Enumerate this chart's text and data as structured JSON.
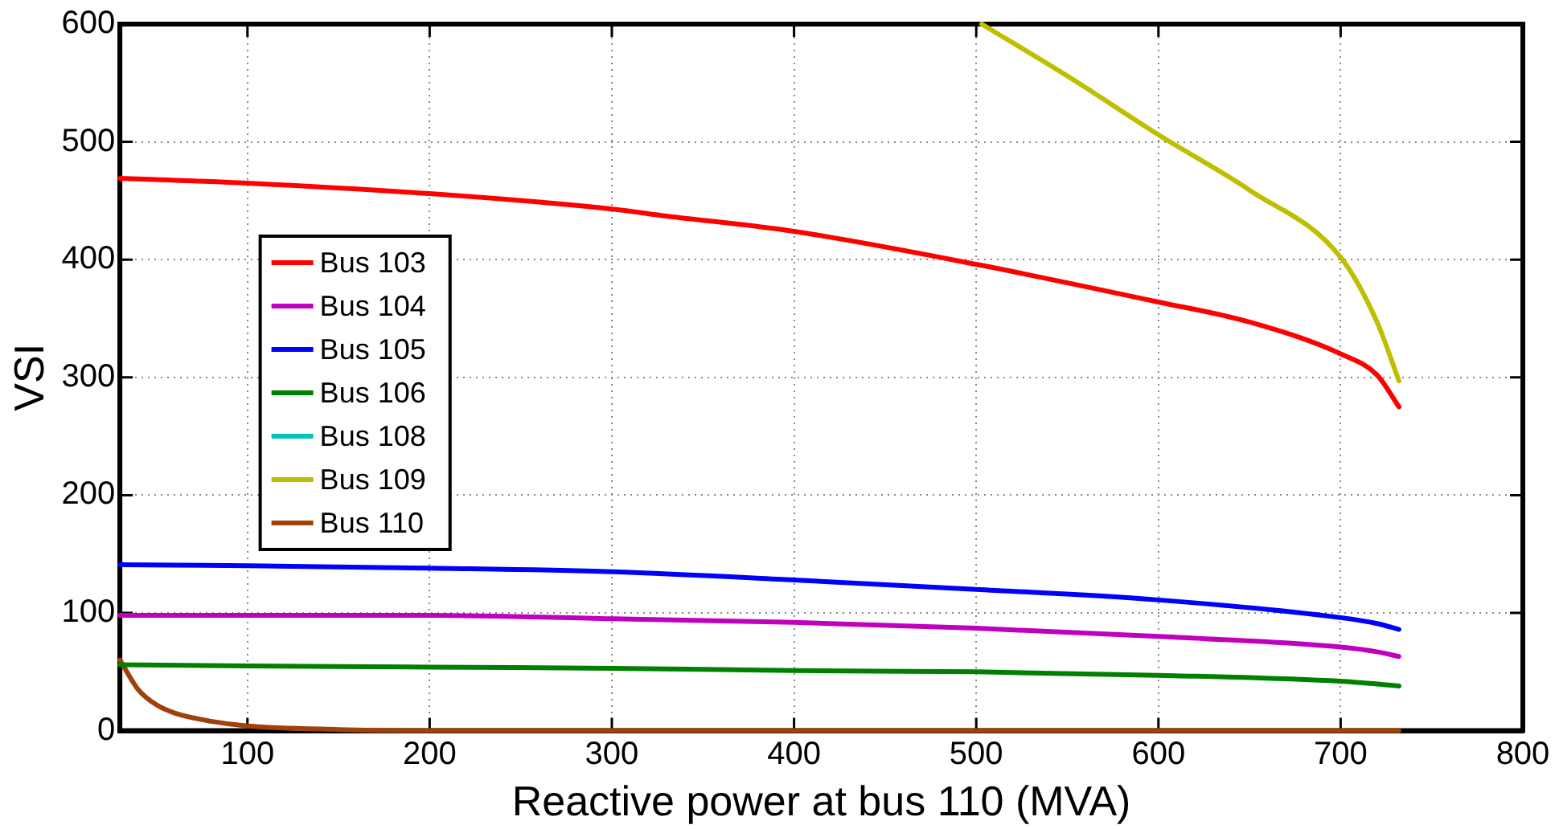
{
  "chart_data": {
    "type": "line",
    "xlabel": "Reactive power at bus 110 (MVA)",
    "ylabel": "VSI",
    "xlim": [
      30,
      800
    ],
    "xticks": [
      100,
      200,
      300,
      400,
      500,
      600,
      700,
      800
    ],
    "ylim": [
      0,
      600
    ],
    "yticks": [
      0,
      100,
      200,
      300,
      400,
      500,
      600
    ],
    "grid": true,
    "legend": "left",
    "line_style": "solid",
    "marker": "none",
    "series": [
      {
        "name": "Bus 103",
        "color": "#ff0000",
        "x": [
          30,
          50,
          100,
          200,
          300,
          330,
          400,
          500,
          600,
          650,
          700,
          720,
          732
        ],
        "values": [
          469,
          468,
          465,
          456,
          443,
          437,
          424,
          396,
          364,
          347,
          320,
          302,
          275
        ]
      },
      {
        "name": "Bus 104",
        "color": "#bf00bf",
        "x": [
          30,
          100,
          200,
          300,
          400,
          500,
          600,
          700,
          720,
          732
        ],
        "values": [
          98,
          98,
          98,
          95,
          92,
          87,
          80,
          71,
          67,
          63
        ]
      },
      {
        "name": "Bus 105",
        "color": "#0000ff",
        "x": [
          30,
          100,
          200,
          300,
          400,
          500,
          600,
          700,
          720,
          732
        ],
        "values": [
          141,
          140,
          138,
          135,
          128,
          120,
          111,
          96,
          91,
          86
        ]
      },
      {
        "name": "Bus 106",
        "color": "#008000",
        "x": [
          30,
          100,
          200,
          300,
          400,
          500,
          600,
          700,
          732
        ],
        "values": [
          56,
          55,
          54,
          53,
          51,
          50,
          47,
          42,
          38
        ]
      },
      {
        "name": "Bus 108",
        "color": "#00bfbf"
      },
      {
        "name": "Bus 109",
        "color": "#bfbf00",
        "x": [
          503,
          550,
          600,
          650,
          700,
          720,
          732
        ],
        "values": [
          600,
          556,
          506,
          459,
          402,
          347,
          297
        ]
      },
      {
        "name": "Bus 110",
        "color": "#a0400a",
        "x": [
          30,
          40,
          50,
          60,
          80,
          100,
          150,
          200,
          300,
          732
        ],
        "values": [
          60,
          35,
          22,
          15,
          8,
          4,
          1,
          0,
          0,
          0
        ]
      }
    ]
  }
}
